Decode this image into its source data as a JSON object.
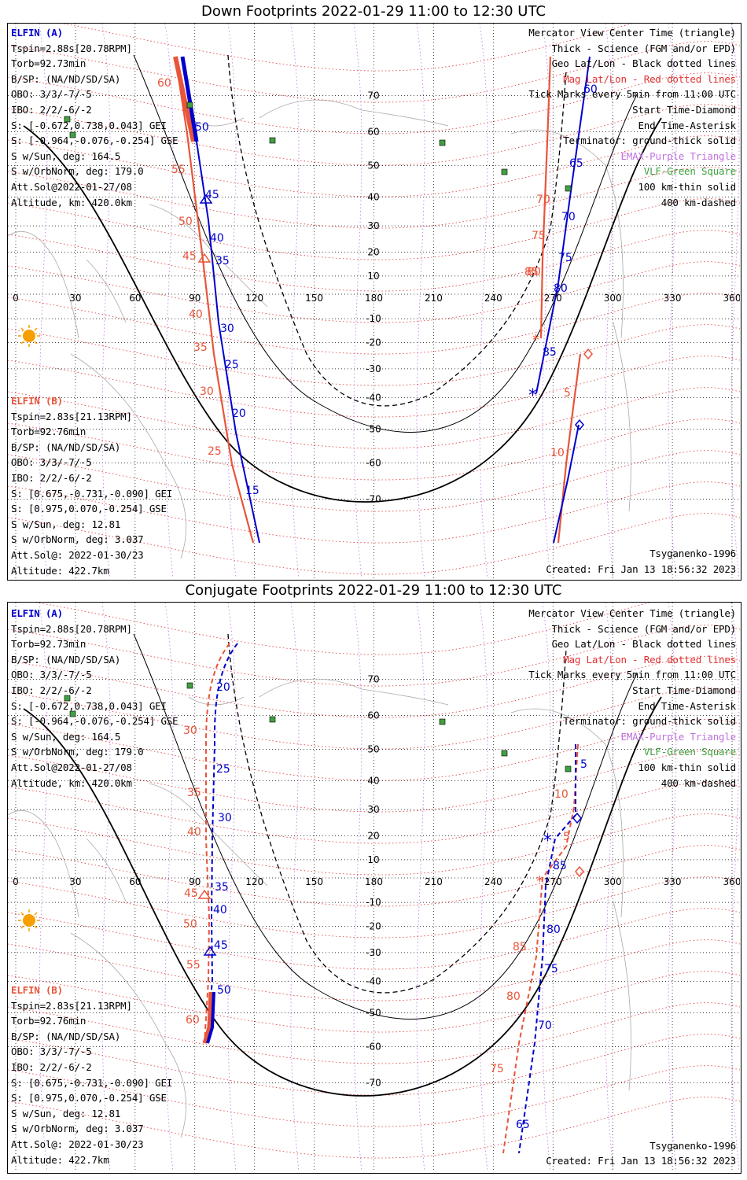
{
  "panels": [
    {
      "title": "Down Footprints 2022-01-29 11:00 to 12:30 UTC",
      "elfin_a": {
        "name": "ELFIN (A)",
        "lines": [
          "Tspin=2.88s[20.78RPM]",
          "Torb=92.73min",
          "B/SP: (NA/ND/SD/SA)",
          "OBO: 3/3/-7/-5",
          "IBO: 2/2/-6/-2",
          "S: [-0.672,0.738,0.043] GEI",
          "S: [-0.964,-0.076,-0.254] GSE",
          "S w/Sun, deg: 164.5",
          "S w/OrbNorm, deg: 179.0",
          "Att.Sol@2022-01-27/08",
          "Altitude, km: 420.0km"
        ]
      },
      "elfin_b": {
        "name": "ELFIN (B)",
        "lines": [
          "Tspin=2.83s[21.13RPM]",
          "Torb=92.76min",
          "B/SP: (NA/ND/SD/SA)",
          "OBO: 3/3/-7/-5",
          "IBO: 2/2/-6/-2",
          "S: [0.675,-0.731,-0.090] GEI",
          "S: [0.975,0.070,-0.254] GSE",
          "S w/Sun, deg: 12.81",
          "S w/OrbNorm, deg: 3.037",
          "Att.Sol@: 2022-01-30/23",
          "Altitude: 422.7km"
        ]
      },
      "legend": [
        "Mercator View Center Time (triangle)",
        "Thick - Science (FGM and/or EPD)",
        "Geo Lat/Lon - Black dotted lines",
        "Mag Lat/Lon - Red dotted lines",
        "Tick Marks every 5min from 11:00 UTC",
        "Start Time-Diamond",
        "End Time-Asterisk",
        "Terminator: ground-thick solid",
        "EMAX-Purple Triangle",
        "VLF-Green Square",
        "100 km-thin solid",
        "400 km-dashed"
      ],
      "model": "Tsyganenko-1996",
      "created": "Created: Fri Jan 13 18:56:32 2023"
    },
    {
      "title": "Conjugate Footprints 2022-01-29 11:00 to 12:30 UTC",
      "elfin_a": {
        "name": "ELFIN (A)",
        "lines": [
          "Tspin=2.88s[20.78RPM]",
          "Torb=92.73min",
          "B/SP: (NA/ND/SD/SA)",
          "OBO: 3/3/-7/-5",
          "IBO: 2/2/-6/-2",
          "S: [-0.672,0.738,0.043] GEI",
          "S: [-0.964,-0.076,-0.254] GSE",
          "S w/Sun, deg: 164.5",
          "S w/OrbNorm, deg: 179.0",
          "Att.Sol@2022-01-27/08",
          "Altitude, km: 420.0km"
        ]
      },
      "elfin_b": {
        "name": "ELFIN (B)",
        "lines": [
          "Tspin=2.83s[21.13RPM]",
          "Torb=92.76min",
          "B/SP: (NA/ND/SD/SA)",
          "OBO: 3/3/-7/-5",
          "IBO: 2/2/-6/-2",
          "S: [0.675,-0.731,-0.090] GEI",
          "S: [0.975,0.070,-0.254] GSE",
          "S w/Sun, deg: 12.81",
          "S w/OrbNorm, deg: 3.037",
          "Att.Sol@: 2022-01-30/23",
          "Altitude: 422.7km"
        ]
      },
      "legend": [
        "Mercator View Center Time (triangle)",
        "Thick - Science (FGM and/or EPD)",
        "Geo Lat/Lon - Black dotted lines",
        "Mag Lat/Lon - Red dotted lines",
        "Tick Marks every 5min from 11:00 UTC",
        "Start Time-Diamond",
        "End Time-Asterisk",
        "Terminator: ground-thick solid",
        "EMAX-Purple Triangle",
        "VLF-Green Square",
        "100 km-thin solid",
        "400 km-dashed"
      ],
      "model": "Tsyganenko-1996",
      "created": "Created: Fri Jan 13 18:56:32 2023"
    }
  ],
  "axes": {
    "lon_ticks": [
      "0",
      "30",
      "60",
      "90",
      "120",
      "150",
      "180",
      "210",
      "240",
      "270",
      "300",
      "330",
      "360"
    ],
    "lat_ticks": [
      "70",
      "60",
      "50",
      "40",
      "30",
      "20",
      "10",
      "-10",
      "-20",
      "-30",
      "-40",
      "-50",
      "-60",
      "-70"
    ]
  },
  "track_labels": {
    "down_a": [
      "50",
      "45",
      "40",
      "35",
      "30",
      "25",
      "20",
      "15",
      "60",
      "65",
      "70",
      "75",
      "80",
      "85"
    ],
    "down_b": [
      "60",
      "55",
      "50",
      "45",
      "40",
      "35",
      "30",
      "25",
      "70",
      "75",
      "80",
      "85",
      "5",
      "10"
    ],
    "conj_a": [
      "20",
      "25",
      "30",
      "35",
      "40",
      "45",
      "50",
      "5",
      "85",
      "80",
      "75",
      "70",
      "65"
    ],
    "conj_b": [
      "30",
      "35",
      "40",
      "45",
      "50",
      "55",
      "60",
      "10",
      "5",
      "85",
      "80",
      "75"
    ]
  },
  "colors": {
    "elfin_a": "#0000cc",
    "elfin_b": "#e8553a",
    "mag_grid": "#e03030",
    "emax": "#c070e0",
    "vlf": "#40a040"
  }
}
